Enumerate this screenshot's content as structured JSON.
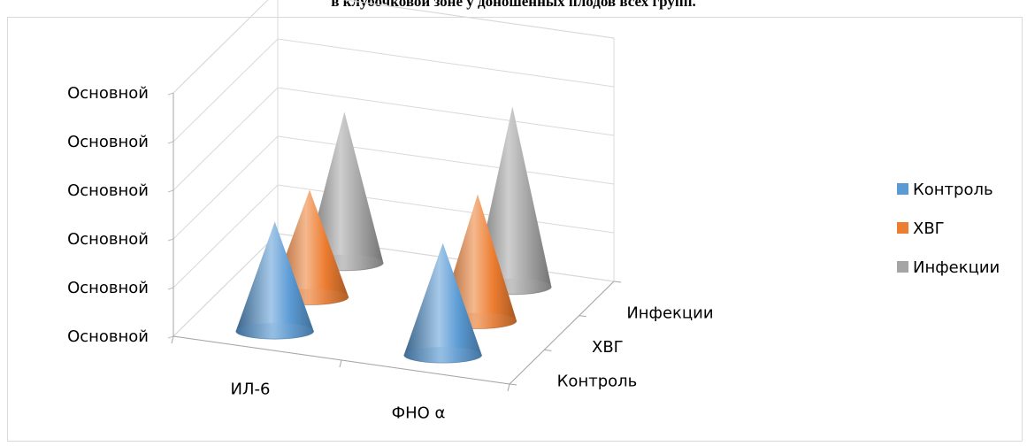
{
  "page": {
    "title": "в клубочковой зоне у доношенных плодов всех групп."
  },
  "chart_data": {
    "type": "bar",
    "subtype": "3d-cone",
    "title": "в клубочковой зоне у доношенных плодов всех групп.",
    "categories": [
      "ИЛ-6",
      "ФНО α"
    ],
    "depth_categories": [
      "Контроль",
      "ХВГ",
      "Инфекции"
    ],
    "y_tick_labels": [
      "Основной",
      "Основной",
      "Основной",
      "Основной",
      "Основной",
      "Основной"
    ],
    "ylim": [
      0,
      5
    ],
    "series": [
      {
        "name": "Контроль",
        "color": "#5b9bd5",
        "values": [
          2.25,
          2.3
        ]
      },
      {
        "name": "ХВГ",
        "color": "#ed7d31",
        "values": [
          2.2,
          2.6
        ]
      },
      {
        "name": "Инфекции",
        "color": "#a5a5a5",
        "values": [
          3.1,
          3.7
        ]
      }
    ],
    "legend": {
      "position": "right",
      "items": [
        "Контроль",
        "ХВГ",
        "Инфекции"
      ]
    },
    "grid": true
  }
}
